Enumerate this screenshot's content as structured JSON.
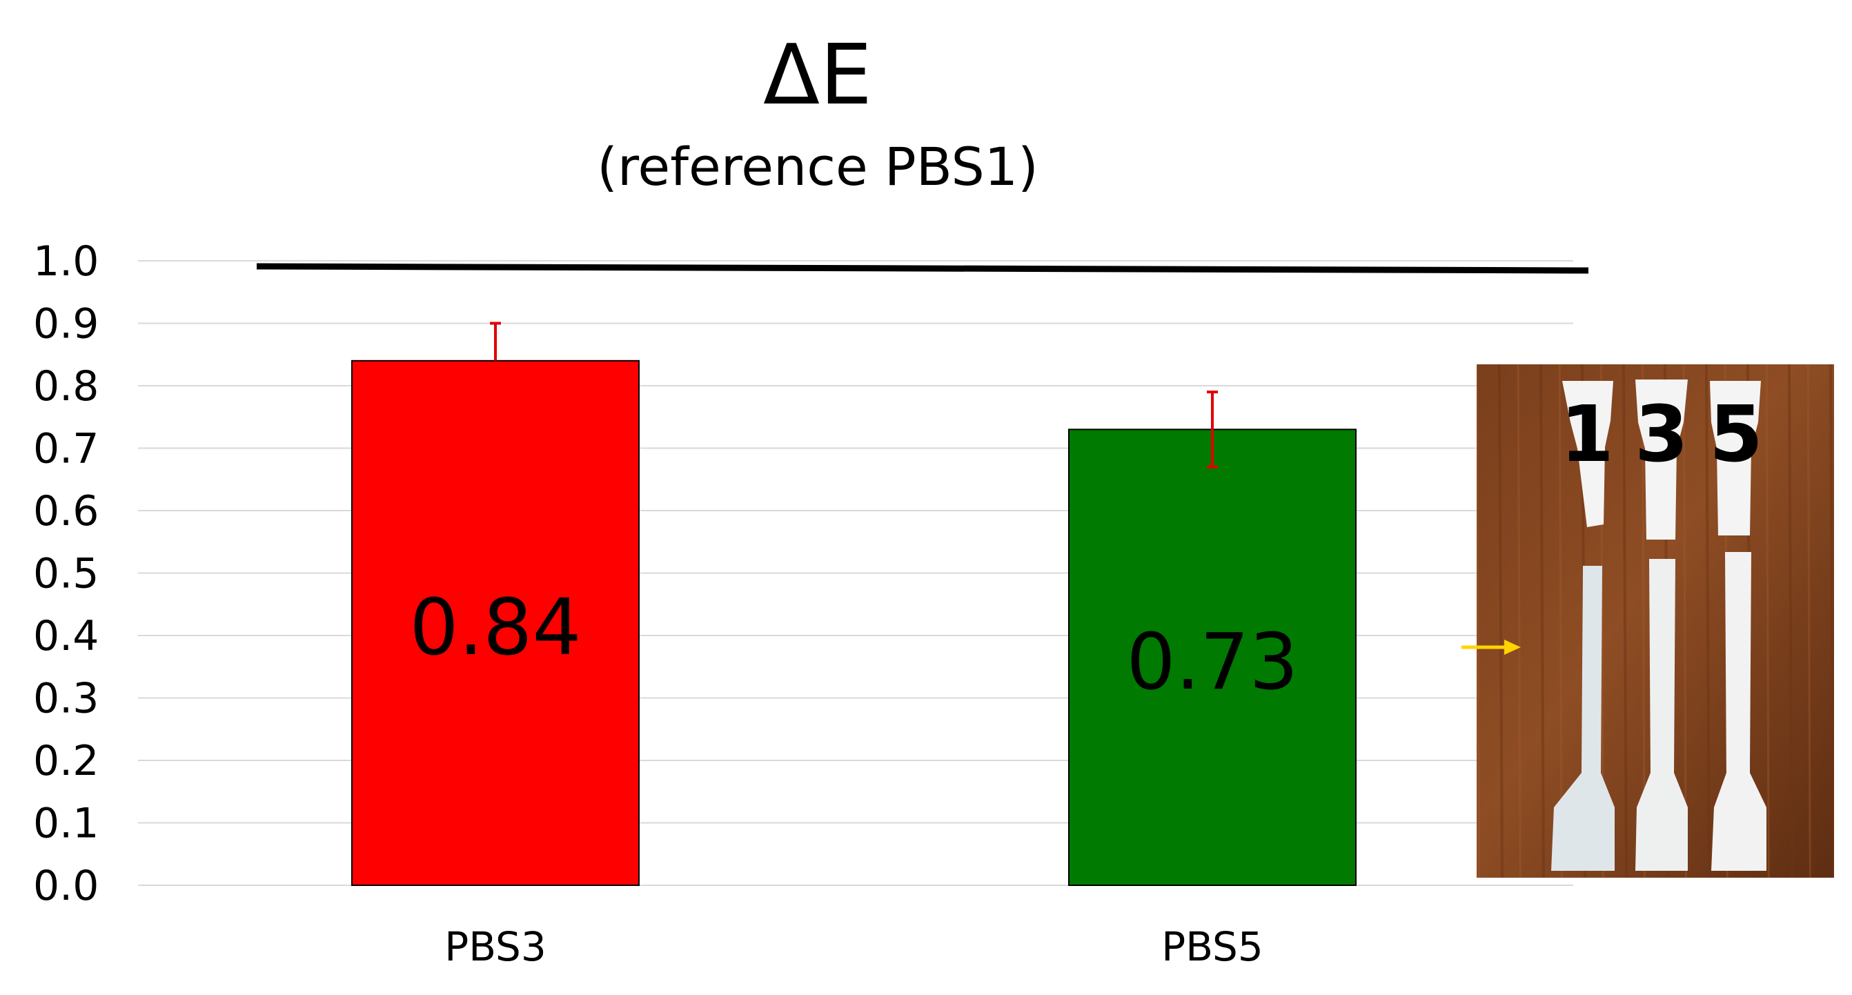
{
  "chart_data": {
    "type": "bar",
    "title": "ΔE",
    "subtitle": "(reference PBS1)",
    "categories": [
      "PBS3",
      "PBS5"
    ],
    "values": [
      0.84,
      0.73
    ],
    "data_labels": [
      "0.84",
      "0.73"
    ],
    "error_upper": [
      0.06,
      0.06
    ],
    "error_lower": [
      0.0,
      0.06
    ],
    "bar_colors": [
      "#ff0000",
      "#007a00"
    ],
    "error_bar_color": "#e00000",
    "reference_line": {
      "value": 1.0,
      "color": "#000000"
    },
    "ylim": [
      0.0,
      1.0
    ],
    "yticks": [
      "0.0",
      "0.1",
      "0.2",
      "0.3",
      "0.4",
      "0.5",
      "0.6",
      "0.7",
      "0.8",
      "0.9",
      "1.0"
    ],
    "grid": true,
    "grid_color": "#d9d9d9",
    "legend": "none",
    "xlabel": "",
    "ylabel": ""
  },
  "inset_photo": {
    "specimen_numbers": [
      "1",
      "3",
      "5"
    ],
    "arrow_color": "#ffd400"
  }
}
